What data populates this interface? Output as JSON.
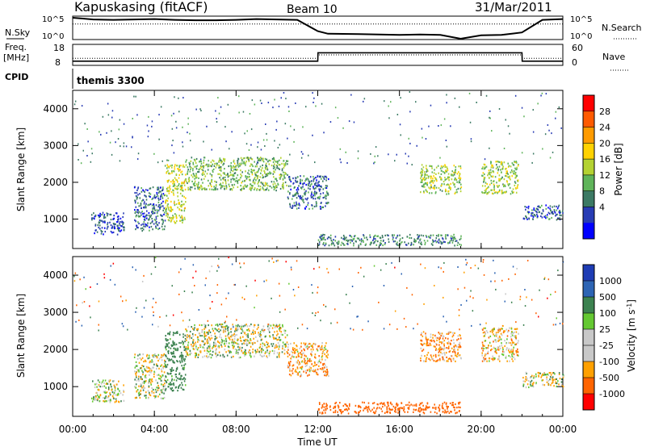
{
  "header": {
    "site": "Kapuskasing (fitACF)",
    "beam": "Beam 10",
    "date": "31/Mar/2011"
  },
  "summary": {
    "nsky_label": "N.Sky",
    "nsky_ticks": [
      "10^5",
      "10^0"
    ],
    "nsky_right_ticks": [
      "10^5",
      "10^0"
    ],
    "nsearch_label": "N.Search",
    "freq_label_1": "Freq.",
    "freq_label_2": "[MHz]",
    "freq_ticks": [
      "18",
      "8"
    ],
    "nave_ticks": [
      "60",
      "0"
    ],
    "nave_label": "Nave",
    "cpid_label": "CPID",
    "program_label": "themis 3300"
  },
  "panels": {
    "range_axis_label": "Slant Range [km]",
    "range_ticks": [
      "4000",
      "3000",
      "2000",
      "1000"
    ],
    "time_axis_label": "Time UT",
    "time_ticks": [
      "00:00",
      "04:00",
      "08:00",
      "12:00",
      "16:00",
      "20:00",
      "00:00"
    ],
    "power_colorbar": {
      "label": "Power [dB]",
      "ticks": [
        "28",
        "24",
        "20",
        "16",
        "12",
        "8",
        "4"
      ],
      "colors": [
        "#ff0000",
        "#ff5a00",
        "#ff9b00",
        "#ffd200",
        "#b4d232",
        "#5fb45a",
        "#3c7a64",
        "#283cb4",
        "#0000ff"
      ]
    },
    "velocity_colorbar": {
      "label": "Velocity [m s-1]",
      "label_main": "Velocity [m s",
      "label_sup": "-1",
      "label_end": "]",
      "ticks": [
        "1000",
        "500",
        "100",
        "25",
        "-25",
        "-100",
        "-500",
        "-1000"
      ],
      "colors": [
        "#1e3cb4",
        "#2d64b4",
        "#3c8250",
        "#64c832",
        "#c8c8c8",
        "#c8c8c8",
        "#ffa000",
        "#ff6400",
        "#ff0000"
      ]
    }
  },
  "chart_data": [
    {
      "type": "line",
      "title": "Kapuskasing (fitACF)",
      "ylabel": "N.Sky",
      "x_range_hours": [
        0,
        24
      ],
      "series": [
        {
          "name": "N.Sky",
          "x": [
            0,
            0.5,
            1,
            2,
            3,
            4,
            5,
            6,
            7,
            8,
            9,
            10,
            11,
            12,
            12.5,
            14,
            16,
            17,
            18,
            19,
            20,
            21,
            22,
            23,
            24
          ],
          "values": [
            5,
            4.8,
            4.6,
            4.5,
            4.6,
            4.7,
            4.5,
            4.4,
            4.4,
            4.5,
            4.7,
            4.6,
            4.5,
            1.8,
            1.2,
            1.1,
            0.9,
            1.0,
            0.9,
            0,
            0.8,
            0.9,
            1.5,
            4.5,
            4.7
          ]
        },
        {
          "name": "N.Search",
          "x": [
            0,
            24
          ],
          "values": [
            3.5,
            3.5
          ]
        }
      ]
    },
    {
      "type": "line",
      "ylabel": "Freq. [MHz]",
      "x_range_hours": [
        0,
        24
      ],
      "series": [
        {
          "name": "Freq",
          "x": [
            0,
            12,
            12.01,
            22,
            22.01,
            24
          ],
          "values": [
            10,
            10,
            14,
            14,
            10,
            10
          ]
        },
        {
          "name": "Nave",
          "x": [
            0,
            12,
            12.01,
            22,
            22.01,
            24
          ],
          "values": [
            20,
            20,
            30,
            30,
            20,
            20
          ]
        }
      ]
    },
    {
      "type": "heatmap",
      "ylabel": "Slant Range [km]",
      "xlabel": "Time UT",
      "ylim": [
        200,
        4500
      ],
      "x_range_hours": [
        0,
        24
      ],
      "value": "Power [dB]",
      "echo_regions": [
        {
          "t0": 0.9,
          "t1": 2.5,
          "r0": 600,
          "r1": 1200,
          "level": 4
        },
        {
          "t0": 3.0,
          "t1": 4.5,
          "r0": 700,
          "r1": 1900,
          "level": 6
        },
        {
          "t0": 4.5,
          "t1": 5.5,
          "r0": 900,
          "r1": 2500,
          "level": 16
        },
        {
          "t0": 5.5,
          "t1": 10.5,
          "r0": 1800,
          "r1": 2700,
          "level": 12
        },
        {
          "t0": 10.5,
          "t1": 12.5,
          "r0": 1300,
          "r1": 2200,
          "level": 6
        },
        {
          "t0": 12.0,
          "t1": 19.0,
          "r0": 300,
          "r1": 600,
          "level": 8
        },
        {
          "t0": 17.0,
          "t1": 19.0,
          "r0": 1700,
          "r1": 2500,
          "level": 14
        },
        {
          "t0": 20.0,
          "t1": 21.8,
          "r0": 1700,
          "r1": 2600,
          "level": 14
        },
        {
          "t0": 22.0,
          "t1": 24.0,
          "r0": 1000,
          "r1": 1400,
          "level": 5
        }
      ]
    },
    {
      "type": "heatmap",
      "ylabel": "Slant Range [km]",
      "xlabel": "Time UT",
      "ylim": [
        200,
        4500
      ],
      "x_range_hours": [
        0,
        24
      ],
      "value": "Velocity [m s-1]",
      "echo_regions": [
        {
          "t0": 0.9,
          "t1": 2.5,
          "r0": 600,
          "r1": 1200,
          "level": 0
        },
        {
          "t0": 3.0,
          "t1": 4.5,
          "r0": 700,
          "r1": 1900,
          "level": 0
        },
        {
          "t0": 4.5,
          "t1": 5.5,
          "r0": 900,
          "r1": 2500,
          "level": 150
        },
        {
          "t0": 5.5,
          "t1": 10.5,
          "r0": 1800,
          "r1": 2700,
          "level": 0
        },
        {
          "t0": 10.5,
          "t1": 12.5,
          "r0": 1300,
          "r1": 2200,
          "level": -60
        },
        {
          "t0": 12.0,
          "t1": 19.0,
          "r0": 300,
          "r1": 600,
          "level": -200
        },
        {
          "t0": 17.0,
          "t1": 19.0,
          "r0": 1700,
          "r1": 2500,
          "level": -80
        },
        {
          "t0": 20.0,
          "t1": 21.8,
          "r0": 1700,
          "r1": 2600,
          "level": -40
        },
        {
          "t0": 22.0,
          "t1": 24.0,
          "r0": 1000,
          "r1": 1400,
          "level": 0
        }
      ]
    }
  ]
}
